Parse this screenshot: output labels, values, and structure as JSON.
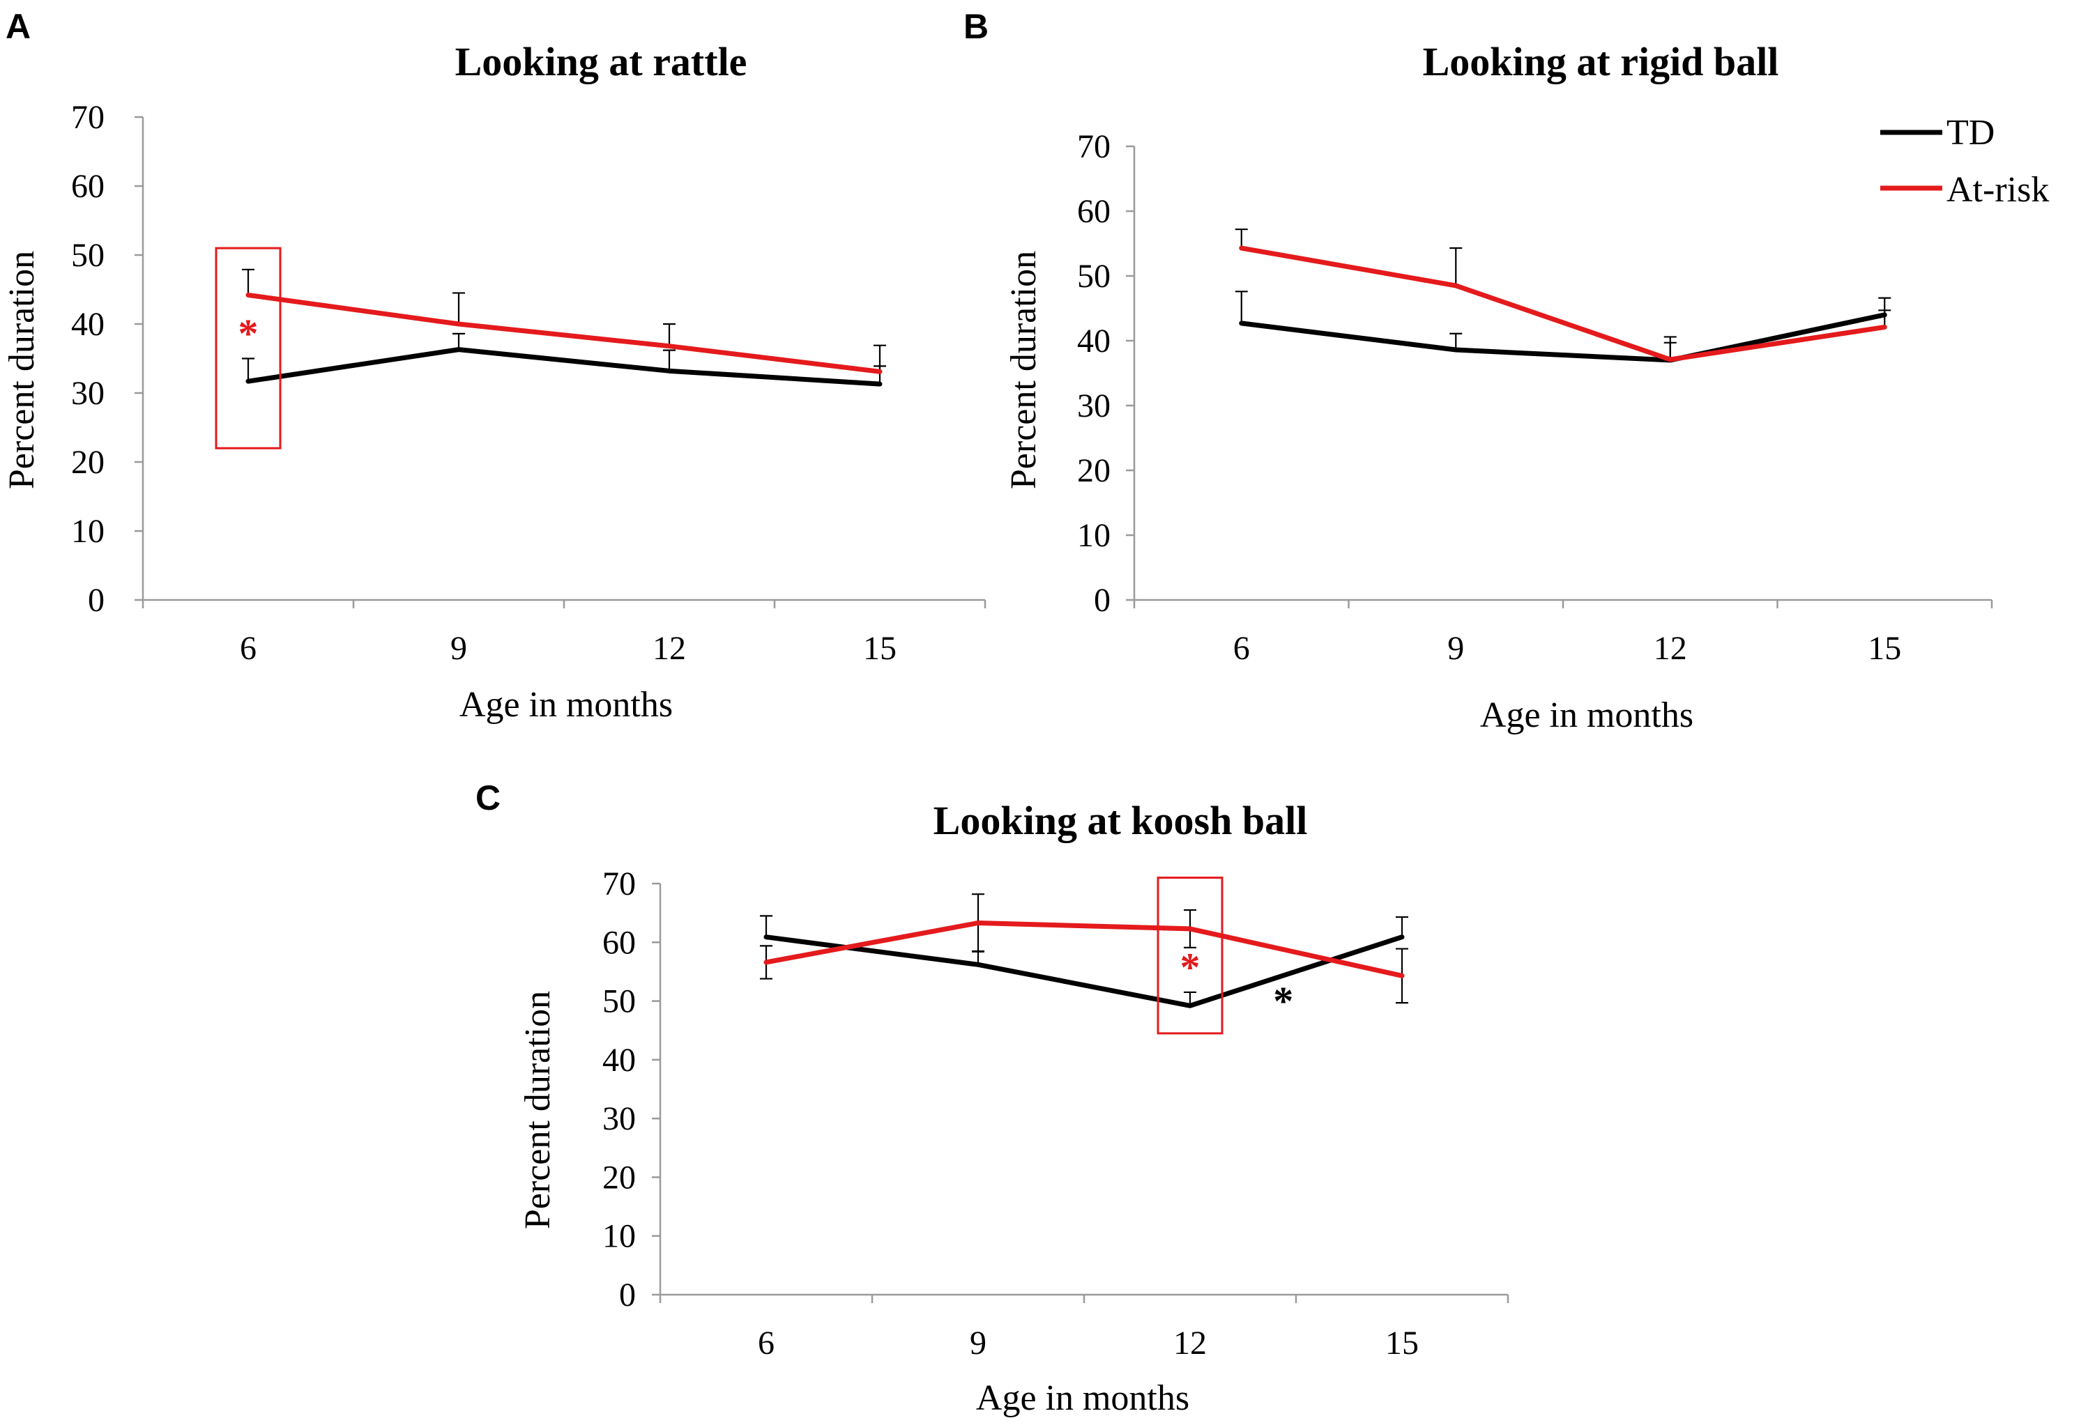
{
  "legend": {
    "entries": [
      {
        "name": "TD",
        "color": "#000000"
      },
      {
        "name": "At-risk",
        "color": "#e41a1c"
      }
    ]
  },
  "chart_data": [
    {
      "panel": "A",
      "type": "line",
      "title": "Looking at rattle",
      "xlabel": "Age in months",
      "ylabel": "Percent duration",
      "categories": [
        "6",
        "9",
        "12",
        "15"
      ],
      "yticks": [
        "0",
        "10",
        "20",
        "30",
        "40",
        "50",
        "60",
        "70"
      ],
      "ylim": [
        0,
        70
      ],
      "series": [
        {
          "name": "TD",
          "color": "#000000",
          "values": [
            31.7,
            36.3,
            33.2,
            31.3
          ],
          "errors": [
            3.3,
            2.3,
            3.0,
            2.6
          ],
          "error_dir": "up"
        },
        {
          "name": "At-risk",
          "color": "#e41a1c",
          "values": [
            44.2,
            40.0,
            36.8,
            33.1
          ],
          "errors": [
            3.7,
            4.5,
            3.2,
            3.8
          ],
          "error_dir": "up"
        }
      ],
      "annotations": [
        {
          "text": "*",
          "color": "#e41a1c",
          "category": "6",
          "y": 39.5,
          "box": {
            "from": 22,
            "to": 51
          }
        }
      ]
    },
    {
      "panel": "B",
      "type": "line",
      "title": "Looking at rigid ball",
      "xlabel": "Age in months",
      "ylabel": "Percent duration",
      "categories": [
        "6",
        "9",
        "12",
        "15"
      ],
      "yticks": [
        "0",
        "10",
        "20",
        "30",
        "40",
        "50",
        "60",
        "70"
      ],
      "ylim": [
        0,
        70
      ],
      "legend_position": "top-right",
      "series": [
        {
          "name": "TD",
          "color": "#000000",
          "values": [
            42.7,
            38.6,
            37.0,
            44.0
          ],
          "errors": [
            4.9,
            2.5,
            3.6,
            2.6
          ],
          "error_dir": "up"
        },
        {
          "name": "At-risk",
          "color": "#e41a1c",
          "values": [
            54.3,
            48.5,
            37.1,
            42.1
          ],
          "errors": [
            2.9,
            5.8,
            2.6,
            2.6
          ],
          "error_dir": "up"
        }
      ],
      "annotations": []
    },
    {
      "panel": "C",
      "type": "line",
      "title": "Looking at koosh ball",
      "xlabel": "Age in months",
      "ylabel": "Percent duration",
      "categories": [
        "6",
        "9",
        "12",
        "15"
      ],
      "yticks": [
        "0",
        "10",
        "20",
        "30",
        "40",
        "50",
        "60",
        "70"
      ],
      "ylim": [
        0,
        70
      ],
      "series": [
        {
          "name": "TD",
          "color": "#000000",
          "values": [
            60.9,
            56.2,
            49.2,
            60.9
          ],
          "errors": [
            3.6,
            2.3,
            2.3,
            3.4
          ],
          "error_dir": "up"
        },
        {
          "name": "At-risk",
          "color": "#e41a1c",
          "values": [
            56.6,
            63.3,
            62.3,
            54.3
          ],
          "errors": [
            2.8,
            4.9,
            3.2,
            4.6
          ],
          "error_dir": "updown"
        }
      ],
      "annotations": [
        {
          "text": "*",
          "color": "#e41a1c",
          "category": "12",
          "y": 56.8,
          "box": {
            "from": 44.5,
            "to": 71
          }
        },
        {
          "text": "*",
          "color": "#000000",
          "category_between": [
            "12",
            "15"
          ],
          "y": 51
        }
      ]
    }
  ]
}
